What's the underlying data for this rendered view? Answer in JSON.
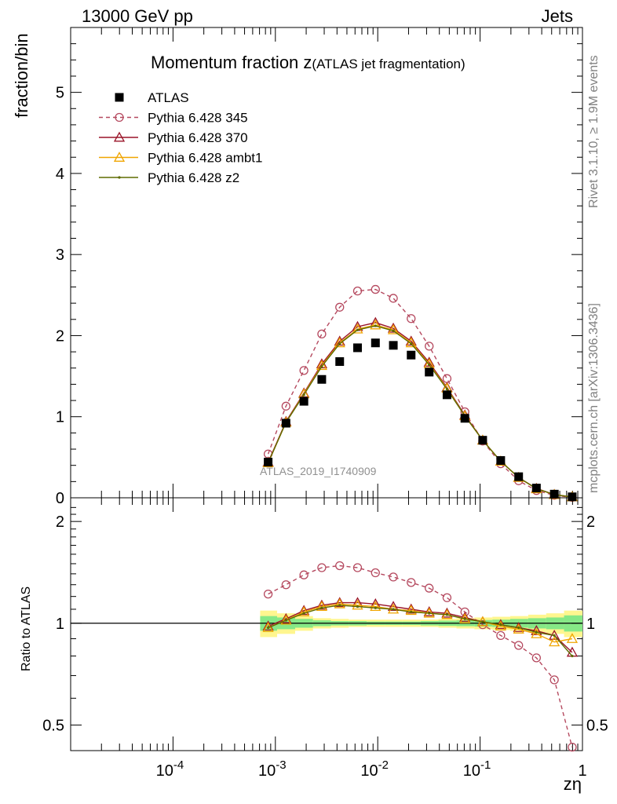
{
  "header": {
    "left": "13000 GeV pp",
    "right": "Jets"
  },
  "plot_title": {
    "main": "Momentum fraction z",
    "sub": "(ATLAS jet fragmentation)"
  },
  "side": {
    "rivet": "Rivet 3.1.10, ≥ 1.9M events",
    "mcplots": "mcplots.cern.ch [arXiv:1306.3436]"
  },
  "watermark": "ATLAS_2019_I1740909",
  "chart_data": [
    {
      "panel": "main",
      "type": "line",
      "ylabel": "fraction/bin",
      "xlabel": "zη",
      "x_scale": "log",
      "xlim": [
        1e-05,
        1
      ],
      "ylim": [
        0,
        5.8
      ],
      "x_ticks": [
        0.0001,
        0.001,
        0.01,
        0.1,
        1
      ],
      "x_tick_labels": [
        "10^-4",
        "10^-3",
        "10^-2",
        "10^-1",
        "1"
      ],
      "y_ticks": [
        0,
        1,
        2,
        3,
        4,
        5
      ],
      "legend_position": "top-left",
      "x": [
        0.00085,
        0.00127,
        0.0019,
        0.00284,
        0.00425,
        0.00635,
        0.0095,
        0.0142,
        0.0212,
        0.0318,
        0.0475,
        0.071,
        0.106,
        0.159,
        0.238,
        0.355,
        0.531,
        0.794
      ],
      "series": [
        {
          "name": "ATLAS",
          "style": "square-marker",
          "color": "#000000",
          "values": [
            0.44,
            0.92,
            1.19,
            1.46,
            1.68,
            1.85,
            1.91,
            1.88,
            1.76,
            1.55,
            1.27,
            0.98,
            0.71,
            0.46,
            0.26,
            0.12,
            0.045,
            0.012
          ]
        },
        {
          "name": "Pythia 6.428 345",
          "style": "dashed-circle",
          "color": "#b5495f",
          "values": [
            0.54,
            1.13,
            1.57,
            2.02,
            2.35,
            2.55,
            2.57,
            2.46,
            2.21,
            1.87,
            1.47,
            1.06,
            0.7,
            0.42,
            0.21,
            0.09,
            0.03,
            0.005
          ]
        },
        {
          "name": "Pythia 6.428 370",
          "style": "solid-triangle",
          "color": "#9a1428",
          "values": [
            0.44,
            0.94,
            1.29,
            1.65,
            1.93,
            2.11,
            2.16,
            2.09,
            1.93,
            1.67,
            1.36,
            1.02,
            0.71,
            0.45,
            0.25,
            0.115,
            0.04,
            0.01
          ]
        },
        {
          "name": "Pythia 6.428 ambt1",
          "style": "solid-triangle",
          "color": "#f0a500",
          "values": [
            0.43,
            0.93,
            1.28,
            1.63,
            1.91,
            2.08,
            2.13,
            2.07,
            1.91,
            1.65,
            1.35,
            1.01,
            0.71,
            0.45,
            0.25,
            0.11,
            0.039,
            0.011
          ]
        },
        {
          "name": "Pythia 6.428 z2",
          "style": "solid-dot",
          "color": "#5e6b00",
          "values": [
            0.43,
            0.93,
            1.27,
            1.62,
            1.9,
            2.07,
            2.12,
            2.06,
            1.9,
            1.64,
            1.34,
            1.01,
            0.71,
            0.45,
            0.25,
            0.112,
            0.04,
            0.01
          ]
        }
      ]
    },
    {
      "panel": "ratio",
      "type": "line",
      "ylabel": "Ratio to ATLAS",
      "xlabel": "zη",
      "x_scale": "log",
      "y_scale": "log",
      "xlim": [
        1e-05,
        1
      ],
      "ylim": [
        0.42,
        2.35
      ],
      "y_ticks": [
        0.5,
        1,
        2
      ],
      "y_tick_labels": [
        "0.5",
        "1",
        "2"
      ],
      "x": [
        0.00085,
        0.00127,
        0.0019,
        0.00284,
        0.00425,
        0.00635,
        0.0095,
        0.0142,
        0.0212,
        0.0318,
        0.0475,
        0.071,
        0.106,
        0.159,
        0.238,
        0.355,
        0.531,
        0.794
      ],
      "band_edges": [
        0.00071,
        0.00104,
        0.00156,
        0.00233,
        0.00349,
        0.00521,
        0.0078,
        0.0117,
        0.0175,
        0.0262,
        0.0392,
        0.0587,
        0.0879,
        0.1317,
        0.197,
        0.295,
        0.442,
        0.661,
        1.0
      ],
      "band_outer": [
        0.09,
        0.07,
        0.05,
        0.035,
        0.03,
        0.025,
        0.025,
        0.025,
        0.025,
        0.025,
        0.03,
        0.035,
        0.04,
        0.045,
        0.05,
        0.06,
        0.07,
        0.09
      ],
      "band_inner": [
        0.05,
        0.04,
        0.03,
        0.02,
        0.015,
        0.015,
        0.012,
        0.012,
        0.012,
        0.015,
        0.018,
        0.02,
        0.022,
        0.025,
        0.03,
        0.035,
        0.04,
        0.055
      ],
      "series": [
        {
          "name": "Pythia 6.428 345",
          "color": "#b5495f",
          "values": [
            1.22,
            1.3,
            1.39,
            1.46,
            1.48,
            1.46,
            1.41,
            1.37,
            1.32,
            1.27,
            1.19,
            1.08,
            0.99,
            0.92,
            0.86,
            0.79,
            0.68,
            0.43
          ]
        },
        {
          "name": "Pythia 6.428 370",
          "color": "#9a1428",
          "values": [
            0.98,
            1.03,
            1.09,
            1.13,
            1.15,
            1.15,
            1.14,
            1.12,
            1.1,
            1.08,
            1.07,
            1.04,
            1.01,
            0.99,
            0.97,
            0.95,
            0.92,
            0.82
          ]
        },
        {
          "name": "Pythia 6.428 ambt1",
          "color": "#f0a500",
          "values": [
            0.97,
            1.02,
            1.08,
            1.12,
            1.14,
            1.13,
            1.12,
            1.1,
            1.09,
            1.07,
            1.06,
            1.03,
            1.01,
            0.98,
            0.96,
            0.93,
            0.88,
            0.9
          ]
        },
        {
          "name": "Pythia 6.428 z2",
          "color": "#5e6b00",
          "values": [
            0.97,
            1.02,
            1.07,
            1.11,
            1.13,
            1.12,
            1.11,
            1.1,
            1.08,
            1.07,
            1.06,
            1.03,
            1.01,
            0.99,
            0.97,
            0.94,
            0.92,
            0.8
          ]
        }
      ]
    }
  ]
}
